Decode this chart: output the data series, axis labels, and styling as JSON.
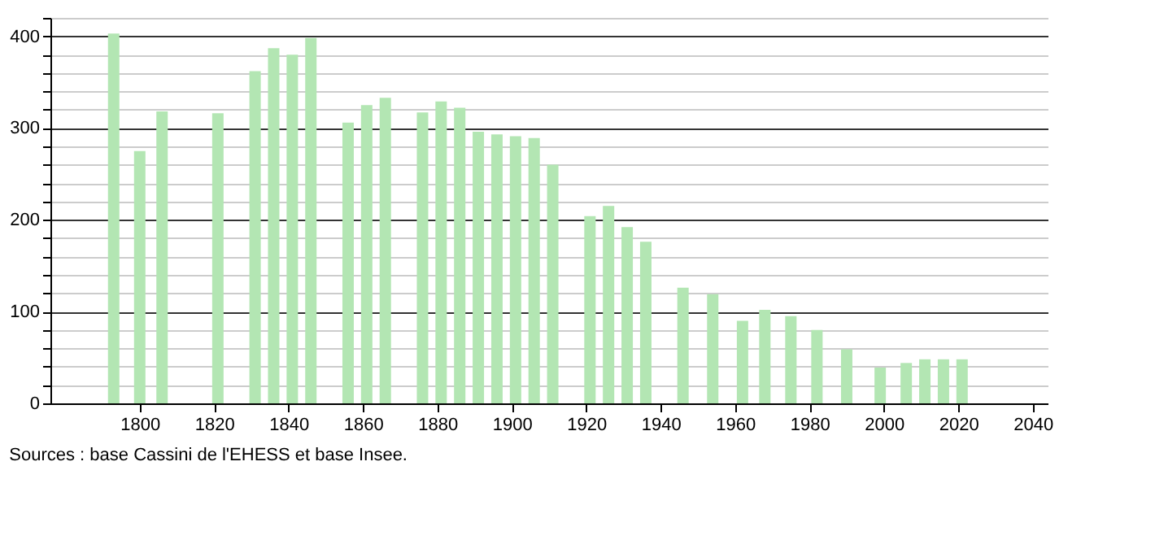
{
  "chart_data": {
    "type": "bar",
    "x": [
      1793,
      1800,
      1806,
      1821,
      1831,
      1836,
      1841,
      1846,
      1856,
      1861,
      1866,
      1876,
      1881,
      1886,
      1891,
      1896,
      1901,
      1906,
      1911,
      1921,
      1926,
      1931,
      1936,
      1946,
      1954,
      1962,
      1968,
      1975,
      1982,
      1990,
      1999,
      2006,
      2011,
      2016,
      2021
    ],
    "values": [
      403,
      275,
      318,
      316,
      362,
      387,
      380,
      398,
      306,
      325,
      333,
      317,
      329,
      322,
      296,
      293,
      291,
      289,
      260,
      204,
      215,
      192,
      176,
      126,
      119,
      90,
      102,
      95,
      80,
      59,
      39,
      44,
      48,
      48,
      48
    ],
    "color": "#b3e6b3",
    "xlim": [
      1776,
      2044
    ],
    "xticks": [
      1800,
      1820,
      1840,
      1860,
      1880,
      1900,
      1920,
      1940,
      1960,
      1980,
      2000,
      2020,
      2040
    ],
    "ylim": [
      0,
      420
    ],
    "yticks": [
      0,
      {
        "value": 20,
        "label": null
      },
      {
        "value": 40,
        "label": null
      },
      {
        "value": 60,
        "label": null
      },
      {
        "value": 80,
        "label": null
      },
      100,
      {
        "value": 120,
        "label": null
      },
      {
        "value": 140,
        "label": null
      },
      {
        "value": 160,
        "label": null
      },
      {
        "value": 180,
        "label": null
      },
      200,
      {
        "value": 220,
        "label": null
      },
      {
        "value": 240,
        "label": null
      },
      {
        "value": 260,
        "label": null
      },
      {
        "value": 280,
        "label": null
      },
      300,
      {
        "value": 320,
        "label": null
      },
      {
        "value": 340,
        "label": null
      },
      {
        "value": 360,
        "label": null
      },
      {
        "value": 380,
        "label": null
      },
      400,
      {
        "value": 420,
        "label": null
      }
    ],
    "grid": "y",
    "annotations": [
      "Sources : base Cassini de l'EHESS et base Insee."
    ]
  }
}
